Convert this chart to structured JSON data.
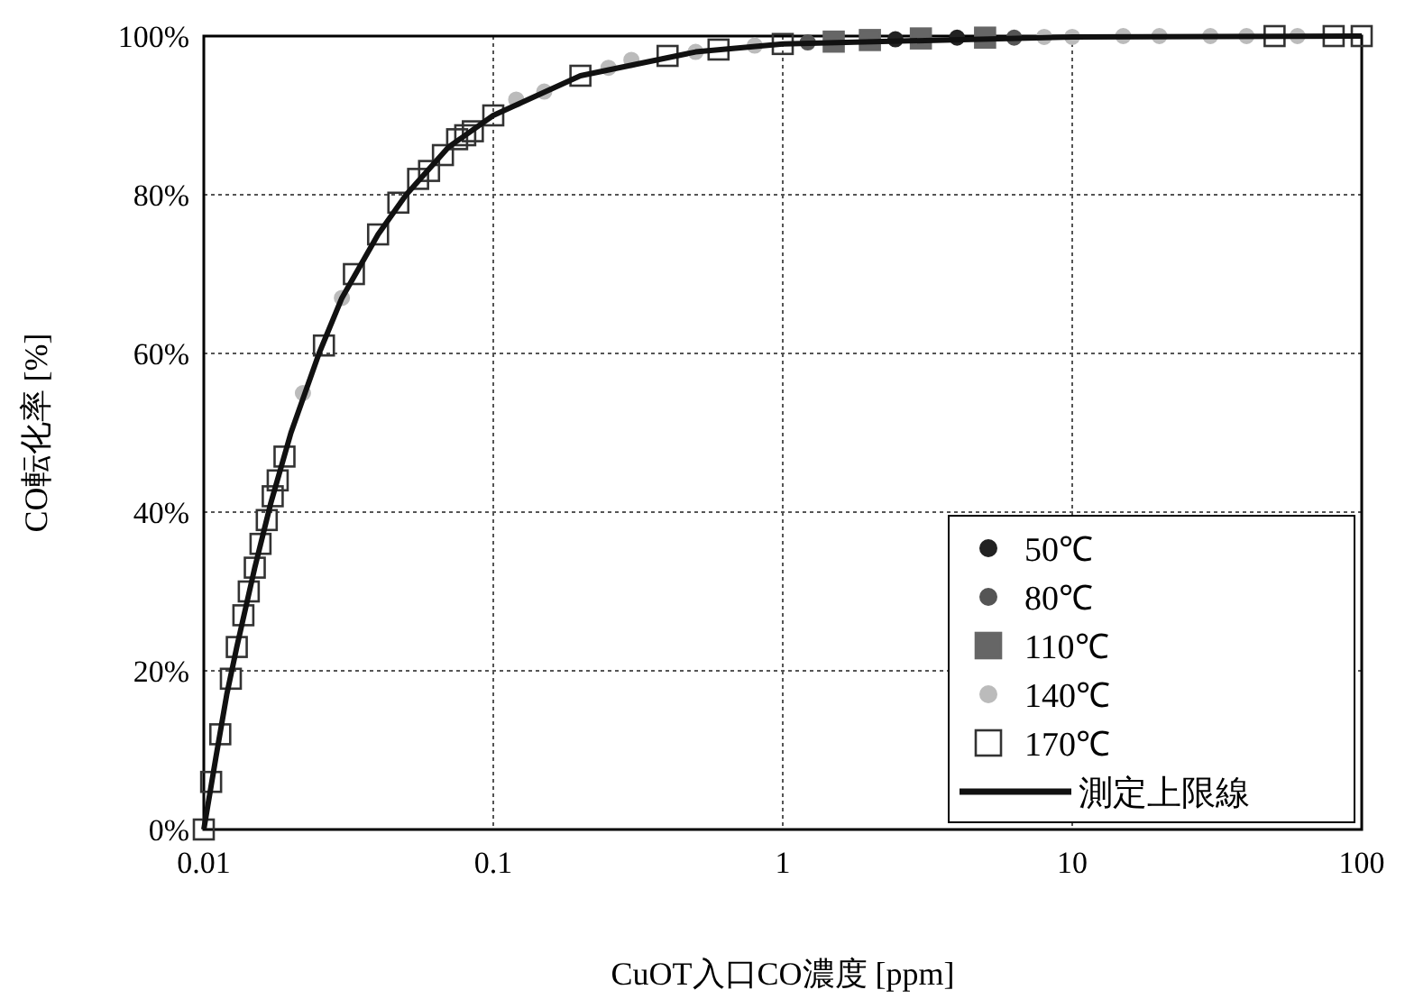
{
  "chart_data": {
    "type": "scatter",
    "xlabel": "CuOT入口CO濃度 [ppm]",
    "ylabel": "CO転化率 [%]",
    "log": "x",
    "xlim": [
      0.01,
      100
    ],
    "ylim": [
      0,
      100
    ],
    "xticks": [
      0.01,
      0.1,
      1,
      10,
      100
    ],
    "yticks": [
      {
        "value": 0,
        "label": "0%"
      },
      {
        "value": 20,
        "label": "20%"
      },
      {
        "value": 40,
        "label": "40%"
      },
      {
        "value": 60,
        "label": "60%"
      },
      {
        "value": 80,
        "label": "80%"
      },
      {
        "value": 100,
        "label": "100%"
      }
    ],
    "grid": true,
    "legend": "bottom right",
    "series": [
      {
        "name": "50℃",
        "marker": "circle",
        "color": "#222222",
        "x": [
          2.45,
          4
        ],
        "values": [
          99.6,
          99.8
        ]
      },
      {
        "name": "80℃",
        "marker": "circle",
        "color": "#555555",
        "x": [
          1.22,
          6.3
        ],
        "values": [
          99.2,
          99.8
        ]
      },
      {
        "name": "110℃",
        "marker": "square",
        "color": "#666666",
        "x": [
          1.5,
          2,
          3,
          5
        ],
        "values": [
          99.3,
          99.5,
          99.7,
          99.8
        ]
      },
      {
        "name": "140℃",
        "marker": "circle",
        "color": "#bbbbbb",
        "x": [
          0.022,
          0.03,
          0.12,
          0.15,
          0.25,
          0.3,
          0.5,
          0.8,
          8,
          10,
          15,
          20,
          30,
          40,
          60
        ],
        "values": [
          55,
          67,
          92,
          93,
          96,
          97,
          98,
          98.8,
          99.9,
          99.9,
          100,
          100,
          100,
          100,
          100
        ]
      },
      {
        "name": "170℃",
        "marker": "square",
        "color": "#333333",
        "x": [
          0.01,
          0.0106,
          0.0114,
          0.0124,
          0.013,
          0.0137,
          0.0143,
          0.015,
          0.0157,
          0.0165,
          0.0173,
          0.018,
          0.019,
          0.026,
          0.033,
          0.04,
          0.047,
          0.055,
          0.06,
          0.067,
          0.075,
          0.08,
          0.085,
          0.1,
          0.2,
          0.4,
          0.6,
          1,
          50,
          80,
          100
        ],
        "values": [
          0,
          6,
          12,
          19,
          23,
          27,
          30,
          33,
          36,
          39,
          42,
          44,
          47,
          61,
          70,
          75,
          79,
          82,
          83,
          85,
          87,
          87.5,
          88,
          90,
          95,
          97.5,
          98.3,
          99,
          100,
          100,
          100
        ]
      },
      {
        "name": "測定上限線",
        "type": "line",
        "marker": "none",
        "color": "#111111",
        "x": [
          0.01,
          0.011,
          0.012,
          0.013,
          0.015,
          0.017,
          0.02,
          0.025,
          0.03,
          0.04,
          0.05,
          0.07,
          0.1,
          0.2,
          0.5,
          1,
          10,
          100
        ],
        "values": [
          0,
          9,
          17,
          23,
          33,
          41,
          50,
          60,
          67,
          75,
          80,
          86,
          90,
          95,
          98,
          99,
          99.9,
          100
        ]
      }
    ]
  }
}
